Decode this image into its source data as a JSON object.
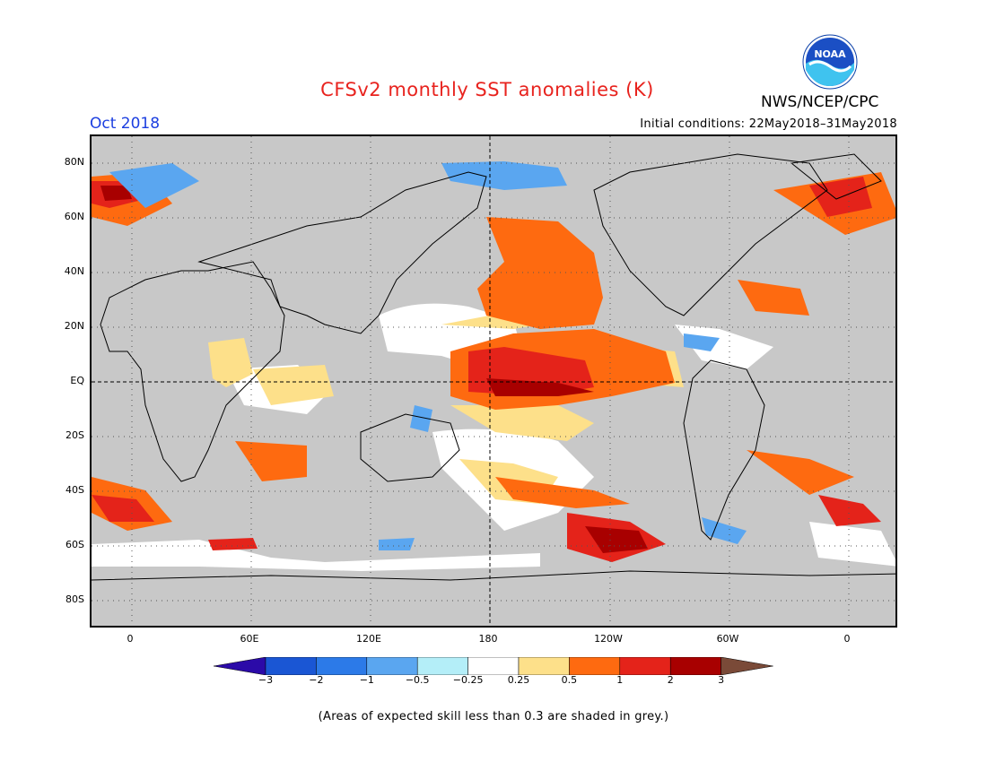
{
  "title": "CFSv2 monthly SST anomalies (K)",
  "agency": "NWS/NCEP/CPC",
  "logo_text": "NOAA",
  "month": "Oct 2018",
  "initial_conditions": "Initial conditions: 22May2018–31May2018",
  "lat_labels": [
    "80N",
    "60N",
    "40N",
    "20N",
    "EQ",
    "20S",
    "40S",
    "60S",
    "80S"
  ],
  "lon_labels": [
    "0",
    "60E",
    "120E",
    "180",
    "120W",
    "60W",
    "0"
  ],
  "colorbar": {
    "ticks": [
      "−3",
      "−2",
      "−1",
      "−0.5",
      "−0.25",
      "0.25",
      "0.5",
      "1",
      "2",
      "3"
    ],
    "colors": [
      "#2b0aa8",
      "#1a56d4",
      "#2c7ae8",
      "#5aa6f0",
      "#b4eef8",
      "#ffffff",
      "#fde08a",
      "#fe6a10",
      "#e4231a",
      "#a80000",
      "#7a4a38"
    ]
  },
  "note": "(Areas of expected skill less than 0.3 are shaded in grey.)",
  "colors": {
    "title": "#e8231e",
    "month": "#1c3fe0",
    "background_grey": "#c8c8c8"
  }
}
